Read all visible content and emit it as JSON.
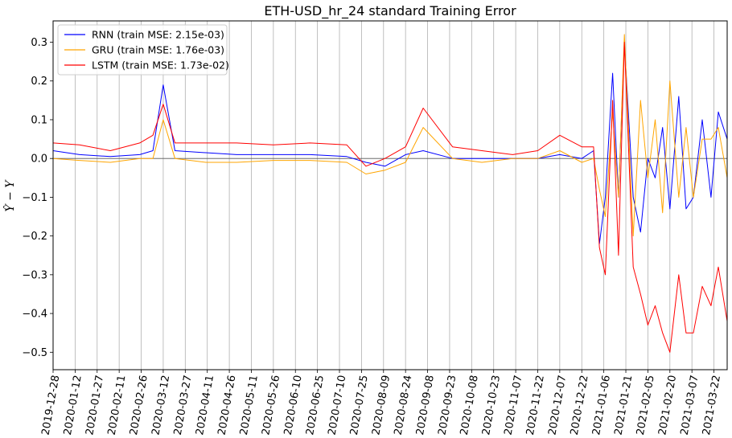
{
  "chart_data": {
    "type": "line",
    "title": "ETH-USD_hr_24 standard Training Error",
    "xlabel": "",
    "ylabel": "Ŷ − Y",
    "xlim": [
      "2019-12-28",
      "2021-03-31"
    ],
    "ylim": [
      -0.545,
      0.355
    ],
    "y_ticks": [
      0.3,
      0.2,
      0.1,
      0.0,
      -0.1,
      -0.2,
      -0.3,
      -0.4,
      -0.5
    ],
    "y_tick_labels": [
      "0.3",
      "0.2",
      "0.1",
      "0.0",
      "−0.1",
      "−0.2",
      "−0.3",
      "−0.4",
      "−0.5"
    ],
    "x_ticks": [
      "2019-12-28",
      "2020-01-12",
      "2020-01-27",
      "2020-02-11",
      "2020-02-26",
      "2020-03-12",
      "2020-03-27",
      "2020-04-11",
      "2020-04-26",
      "2020-05-11",
      "2020-05-26",
      "2020-06-10",
      "2020-06-25",
      "2020-07-10",
      "2020-07-25",
      "2020-08-09",
      "2020-08-24",
      "2020-09-08",
      "2020-09-23",
      "2020-10-08",
      "2020-10-23",
      "2020-11-07",
      "2020-11-22",
      "2020-12-07",
      "2020-12-22",
      "2021-01-06",
      "2021-01-21",
      "2021-02-05",
      "2021-02-20",
      "2021-03-07",
      "2021-03-22"
    ],
    "grid": "vertical",
    "zero_line": true,
    "legend_position": "top-left",
    "series": [
      {
        "name": "RNN (train MSE: 2.15e-03)",
        "color": "#0000ff",
        "x": [
          "2019-12-28",
          "2020-01-15",
          "2020-02-05",
          "2020-02-25",
          "2020-03-05",
          "2020-03-12",
          "2020-03-20",
          "2020-04-10",
          "2020-05-01",
          "2020-05-26",
          "2020-06-20",
          "2020-07-15",
          "2020-07-28",
          "2020-08-10",
          "2020-08-24",
          "2020-09-05",
          "2020-09-25",
          "2020-10-15",
          "2020-11-05",
          "2020-11-22",
          "2020-12-07",
          "2020-12-22",
          "2020-12-30",
          "2021-01-03",
          "2021-01-07",
          "2021-01-12",
          "2021-01-16",
          "2021-01-20",
          "2021-01-26",
          "2021-01-31",
          "2021-02-05",
          "2021-02-10",
          "2021-02-15",
          "2021-02-20",
          "2021-02-26",
          "2021-03-03",
          "2021-03-08",
          "2021-03-14",
          "2021-03-20",
          "2021-03-25",
          "2021-03-31"
        ],
        "y": [
          0.02,
          0.01,
          0.005,
          0.01,
          0.02,
          0.19,
          0.02,
          0.015,
          0.01,
          0.01,
          0.01,
          0.005,
          -0.01,
          -0.02,
          0.01,
          0.02,
          0.0,
          0.0,
          0.0,
          0.0,
          0.01,
          0.0,
          0.02,
          -0.22,
          -0.1,
          0.22,
          -0.1,
          0.3,
          -0.1,
          -0.19,
          0.0,
          -0.05,
          0.08,
          -0.13,
          0.16,
          -0.13,
          -0.1,
          0.1,
          -0.1,
          0.12,
          0.05
        ]
      },
      {
        "name": "GRU (train MSE: 1.76e-03)",
        "color": "#ffa500",
        "x": [
          "2019-12-28",
          "2020-01-15",
          "2020-02-05",
          "2020-02-25",
          "2020-03-05",
          "2020-03-12",
          "2020-03-20",
          "2020-04-10",
          "2020-05-01",
          "2020-05-26",
          "2020-06-20",
          "2020-07-15",
          "2020-07-28",
          "2020-08-10",
          "2020-08-24",
          "2020-09-05",
          "2020-09-25",
          "2020-10-15",
          "2020-11-05",
          "2020-11-22",
          "2020-12-07",
          "2020-12-22",
          "2020-12-30",
          "2021-01-03",
          "2021-01-07",
          "2021-01-12",
          "2021-01-16",
          "2021-01-20",
          "2021-01-26",
          "2021-01-31",
          "2021-02-05",
          "2021-02-10",
          "2021-02-15",
          "2021-02-20",
          "2021-02-26",
          "2021-03-03",
          "2021-03-08",
          "2021-03-14",
          "2021-03-20",
          "2021-03-25",
          "2021-03-31"
        ],
        "y": [
          0.0,
          -0.005,
          -0.01,
          0.0,
          0.0,
          0.1,
          0.0,
          -0.01,
          -0.01,
          -0.005,
          -0.005,
          -0.01,
          -0.04,
          -0.03,
          -0.01,
          0.08,
          0.0,
          -0.01,
          0.0,
          0.0,
          0.02,
          -0.01,
          0.0,
          -0.08,
          -0.15,
          0.12,
          -0.1,
          0.32,
          -0.2,
          0.15,
          -0.05,
          0.1,
          -0.14,
          0.2,
          -0.1,
          0.08,
          -0.1,
          0.05,
          0.05,
          0.08,
          -0.05
        ]
      },
      {
        "name": "LSTM (train MSE: 1.73e-02)",
        "color": "#ff0000",
        "x": [
          "2019-12-28",
          "2020-01-15",
          "2020-02-05",
          "2020-02-25",
          "2020-03-05",
          "2020-03-12",
          "2020-03-20",
          "2020-04-10",
          "2020-05-01",
          "2020-05-26",
          "2020-06-20",
          "2020-07-15",
          "2020-07-28",
          "2020-08-10",
          "2020-08-24",
          "2020-09-05",
          "2020-09-25",
          "2020-10-15",
          "2020-11-05",
          "2020-11-22",
          "2020-12-07",
          "2020-12-22",
          "2020-12-30",
          "2021-01-03",
          "2021-01-07",
          "2021-01-12",
          "2021-01-16",
          "2021-01-20",
          "2021-01-26",
          "2021-01-31",
          "2021-02-05",
          "2021-02-10",
          "2021-02-15",
          "2021-02-20",
          "2021-02-26",
          "2021-03-03",
          "2021-03-08",
          "2021-03-14",
          "2021-03-20",
          "2021-03-25",
          "2021-03-31"
        ],
        "y": [
          0.04,
          0.035,
          0.02,
          0.04,
          0.06,
          0.14,
          0.04,
          0.04,
          0.04,
          0.035,
          0.04,
          0.035,
          -0.02,
          0.0,
          0.03,
          0.13,
          0.03,
          0.02,
          0.01,
          0.02,
          0.06,
          0.03,
          0.03,
          -0.23,
          -0.3,
          0.15,
          -0.25,
          0.3,
          -0.28,
          -0.35,
          -0.43,
          -0.38,
          -0.45,
          -0.5,
          -0.3,
          -0.45,
          -0.45,
          -0.33,
          -0.38,
          -0.28,
          -0.42
        ]
      }
    ]
  }
}
